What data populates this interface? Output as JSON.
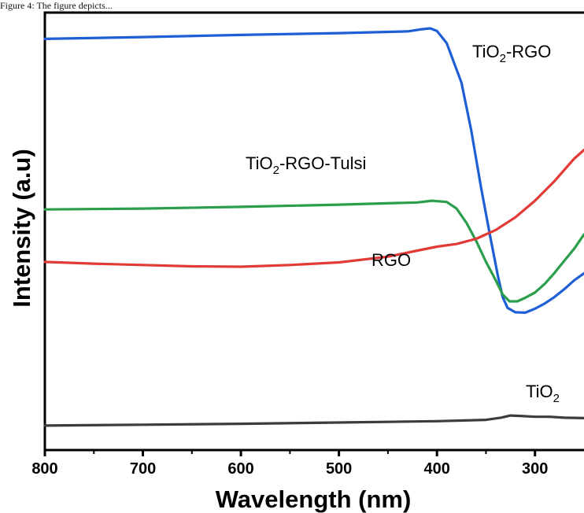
{
  "caption": "Figure 4: The figure depicts...",
  "chart_data": {
    "type": "line",
    "xlabel": "Wavelength (nm)",
    "ylabel": "Intensity (a.u)",
    "x_reversed": true,
    "xlim": [
      800,
      250
    ],
    "ylim": [
      0,
      100
    ],
    "y_ticks_labeled": false,
    "x_ticks": [
      {
        "value": 800,
        "label": "800"
      },
      {
        "value": 700,
        "label": "700"
      },
      {
        "value": 600,
        "label": "600"
      },
      {
        "value": 500,
        "label": "500"
      },
      {
        "value": 400,
        "label": "400"
      },
      {
        "value": 300,
        "label": "300"
      }
    ],
    "x_minor_ticks": [
      750,
      650,
      550,
      450,
      350
    ],
    "series": [
      {
        "key": "tio2_rgo",
        "name_parts": [
          "TiO",
          "2",
          "-RGO"
        ],
        "color": "#1f5fd6",
        "points": [
          [
            800,
            94.0
          ],
          [
            700,
            94.4
          ],
          [
            600,
            94.9
          ],
          [
            500,
            95.3
          ],
          [
            430,
            95.7
          ],
          [
            415,
            96.2
          ],
          [
            407,
            96.4
          ],
          [
            400,
            95.8
          ],
          [
            390,
            93.0
          ],
          [
            375,
            84.0
          ],
          [
            365,
            73.0
          ],
          [
            355,
            60.0
          ],
          [
            345,
            48.0
          ],
          [
            338,
            40.0
          ],
          [
            333,
            35.0
          ],
          [
            328,
            32.5
          ],
          [
            320,
            31.5
          ],
          [
            310,
            31.4
          ],
          [
            300,
            32.3
          ],
          [
            290,
            33.5
          ],
          [
            280,
            35.0
          ],
          [
            270,
            36.8
          ],
          [
            260,
            38.8
          ],
          [
            250,
            40.4
          ]
        ]
      },
      {
        "key": "tio2_rgo_tulsi",
        "name_parts": [
          "TiO",
          "2",
          "-RGO-Tulsi"
        ],
        "color": "#2a9e4a",
        "points": [
          [
            800,
            55.0
          ],
          [
            700,
            55.2
          ],
          [
            600,
            55.6
          ],
          [
            500,
            56.1
          ],
          [
            420,
            56.6
          ],
          [
            405,
            57.0
          ],
          [
            390,
            56.7
          ],
          [
            380,
            55.2
          ],
          [
            370,
            52.0
          ],
          [
            360,
            47.8
          ],
          [
            350,
            43.0
          ],
          [
            340,
            38.8
          ],
          [
            333,
            35.6
          ],
          [
            326,
            34.0
          ],
          [
            318,
            34.0
          ],
          [
            310,
            34.8
          ],
          [
            300,
            36.0
          ],
          [
            290,
            38.0
          ],
          [
            280,
            40.5
          ],
          [
            270,
            43.3
          ],
          [
            260,
            46.0
          ],
          [
            250,
            49.3
          ]
        ]
      },
      {
        "key": "rgo",
        "name_parts": [
          "RGO"
        ],
        "color": "#e23a35",
        "points": [
          [
            800,
            43.0
          ],
          [
            750,
            42.6
          ],
          [
            700,
            42.3
          ],
          [
            650,
            42.0
          ],
          [
            600,
            41.9
          ],
          [
            550,
            42.3
          ],
          [
            500,
            42.9
          ],
          [
            450,
            44.2
          ],
          [
            420,
            45.6
          ],
          [
            400,
            46.5
          ],
          [
            380,
            47.1
          ],
          [
            360,
            48.3
          ],
          [
            340,
            50.3
          ],
          [
            320,
            53.2
          ],
          [
            300,
            57.0
          ],
          [
            280,
            61.5
          ],
          [
            260,
            66.6
          ],
          [
            250,
            68.6
          ]
        ]
      },
      {
        "key": "tio2",
        "name_parts": [
          "TiO",
          "2"
        ],
        "color": "#3c3c3c",
        "points": [
          [
            800,
            5.6
          ],
          [
            700,
            5.8
          ],
          [
            600,
            6.0
          ],
          [
            500,
            6.3
          ],
          [
            400,
            6.6
          ],
          [
            350,
            6.9
          ],
          [
            335,
            7.4
          ],
          [
            325,
            7.9
          ],
          [
            315,
            7.8
          ],
          [
            300,
            7.6
          ],
          [
            285,
            7.6
          ],
          [
            270,
            7.4
          ],
          [
            250,
            7.3
          ]
        ]
      }
    ]
  }
}
